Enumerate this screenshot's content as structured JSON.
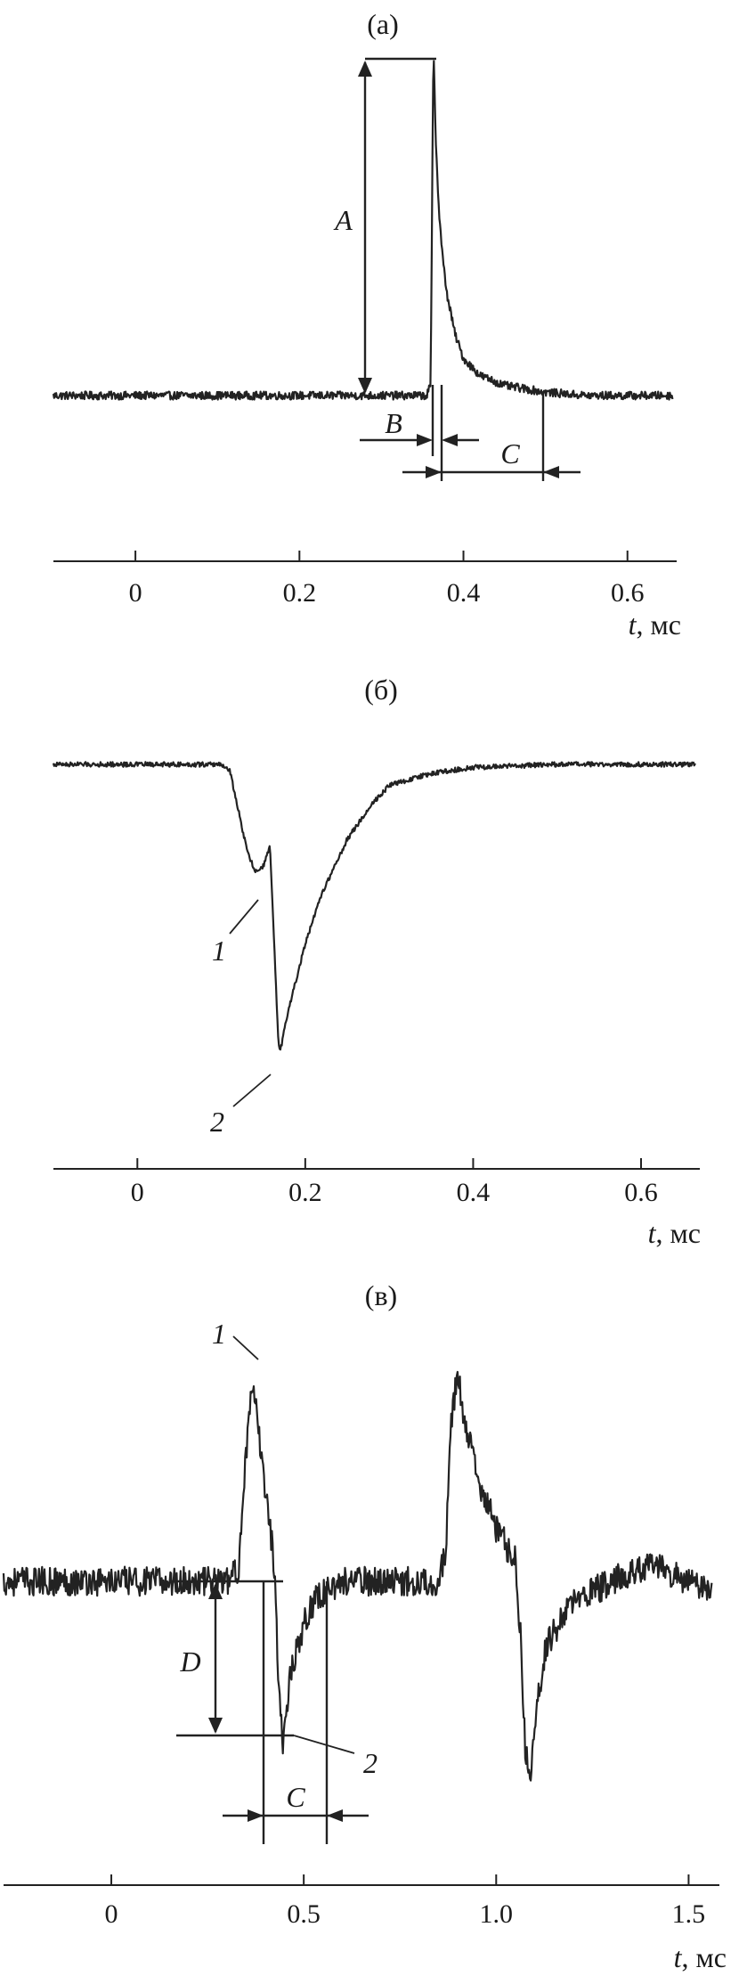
{
  "chart_data": [
    {
      "type": "line",
      "panel_label": "(а)",
      "xlabel_var": "t",
      "xlabel_unit": ", мс",
      "xlim": [
        -0.1,
        0.66
      ],
      "ticks": [
        0,
        0.2,
        0.4,
        0.6
      ],
      "tick_labels": [
        "0",
        "0.2",
        "0.4",
        "0.6"
      ],
      "series": [
        {
          "points": [
            [
              -0.1,
              0.0
            ],
            [
              0.0,
              0.0
            ],
            [
              0.1,
              0.0
            ],
            [
              0.2,
              0.0
            ],
            [
              0.3,
              0.0
            ],
            [
              0.355,
              0.0
            ],
            [
              0.36,
              0.03
            ],
            [
              0.363,
              0.93
            ],
            [
              0.364,
              1.0
            ],
            [
              0.366,
              0.78
            ],
            [
              0.37,
              0.55
            ],
            [
              0.375,
              0.4
            ],
            [
              0.38,
              0.3
            ],
            [
              0.39,
              0.18
            ],
            [
              0.4,
              0.11
            ],
            [
              0.42,
              0.06
            ],
            [
              0.45,
              0.03
            ],
            [
              0.5,
              0.01
            ],
            [
              0.55,
              0.0
            ],
            [
              0.6,
              0.0
            ],
            [
              0.655,
              0.0
            ]
          ],
          "noise": 0.012
        }
      ],
      "annotations": [
        {
          "label": "A",
          "kind": "amplitude"
        },
        {
          "label": "B",
          "kind": "interval",
          "from": 0.36,
          "to": 0.373
        },
        {
          "label": "C",
          "kind": "interval",
          "from": 0.373,
          "to": 0.5
        }
      ]
    },
    {
      "type": "line",
      "panel_label": "(б)",
      "xlabel_var": "t",
      "xlabel_unit": ", мс",
      "xlim": [
        -0.1,
        0.67
      ],
      "ticks": [
        0,
        0.2,
        0.4,
        0.6
      ],
      "tick_labels": [
        "0",
        "0.2",
        "0.4",
        "0.6"
      ],
      "series": [
        {
          "points": [
            [
              -0.1,
              0.0
            ],
            [
              0.0,
              0.0
            ],
            [
              0.1,
              0.0
            ],
            [
              0.11,
              -0.02
            ],
            [
              0.12,
              -0.15
            ],
            [
              0.13,
              -0.28
            ],
            [
              0.14,
              -0.36
            ],
            [
              0.15,
              -0.34
            ],
            [
              0.155,
              -0.3
            ],
            [
              0.158,
              -0.27
            ],
            [
              0.163,
              -0.6
            ],
            [
              0.168,
              -0.93
            ],
            [
              0.17,
              -0.96
            ],
            [
              0.18,
              -0.82
            ],
            [
              0.2,
              -0.6
            ],
            [
              0.22,
              -0.43
            ],
            [
              0.25,
              -0.25
            ],
            [
              0.28,
              -0.13
            ],
            [
              0.3,
              -0.07
            ],
            [
              0.35,
              -0.03
            ],
            [
              0.4,
              -0.01
            ],
            [
              0.5,
              0.0
            ],
            [
              0.6,
              0.0
            ],
            [
              0.665,
              0.0
            ]
          ],
          "noise": 0.008
        }
      ],
      "annotations": [
        {
          "label": "1",
          "kind": "point",
          "x": 0.15
        },
        {
          "label": "2",
          "kind": "point",
          "x": 0.17
        }
      ]
    },
    {
      "type": "line",
      "panel_label": "(в)",
      "xlabel_var": "t",
      "xlabel_unit": ", мс",
      "xlim": [
        -0.28,
        1.58
      ],
      "ticks": [
        0,
        0.5,
        1.0,
        1.5
      ],
      "tick_labels": [
        "0",
        "0.5",
        "1.0",
        "1.5"
      ],
      "series": [
        {
          "points": [
            [
              -0.28,
              0.0
            ],
            [
              0.0,
              0.0
            ],
            [
              0.3,
              0.0
            ],
            [
              0.33,
              0.05
            ],
            [
              0.345,
              0.5
            ],
            [
              0.36,
              0.82
            ],
            [
              0.37,
              0.9
            ],
            [
              0.39,
              0.6
            ],
            [
              0.41,
              0.3
            ],
            [
              0.425,
              0.05
            ],
            [
              0.435,
              -0.5
            ],
            [
              0.445,
              -0.78
            ],
            [
              0.455,
              -0.6
            ],
            [
              0.47,
              -0.4
            ],
            [
              0.5,
              -0.2
            ],
            [
              0.53,
              -0.08
            ],
            [
              0.6,
              0.0
            ],
            [
              0.85,
              0.0
            ],
            [
              0.87,
              0.15
            ],
            [
              0.88,
              0.7
            ],
            [
              0.9,
              1.0
            ],
            [
              0.91,
              0.85
            ],
            [
              0.95,
              0.5
            ],
            [
              1.0,
              0.25
            ],
            [
              1.05,
              0.1
            ],
            [
              1.065,
              -0.3
            ],
            [
              1.075,
              -0.8
            ],
            [
              1.09,
              -1.0
            ],
            [
              1.1,
              -0.65
            ],
            [
              1.13,
              -0.3
            ],
            [
              1.2,
              -0.1
            ],
            [
              1.3,
              0.0
            ],
            [
              1.4,
              0.08
            ],
            [
              1.5,
              0.0
            ],
            [
              1.56,
              -0.05
            ]
          ],
          "noise": 0.07
        }
      ],
      "annotations": [
        {
          "label": "1",
          "kind": "point",
          "x": 0.37
        },
        {
          "label": "2",
          "kind": "point",
          "x": 0.445
        },
        {
          "label": "D",
          "kind": "amplitude"
        },
        {
          "label": "C",
          "kind": "interval",
          "from": 0.385,
          "to": 0.54
        }
      ]
    }
  ]
}
